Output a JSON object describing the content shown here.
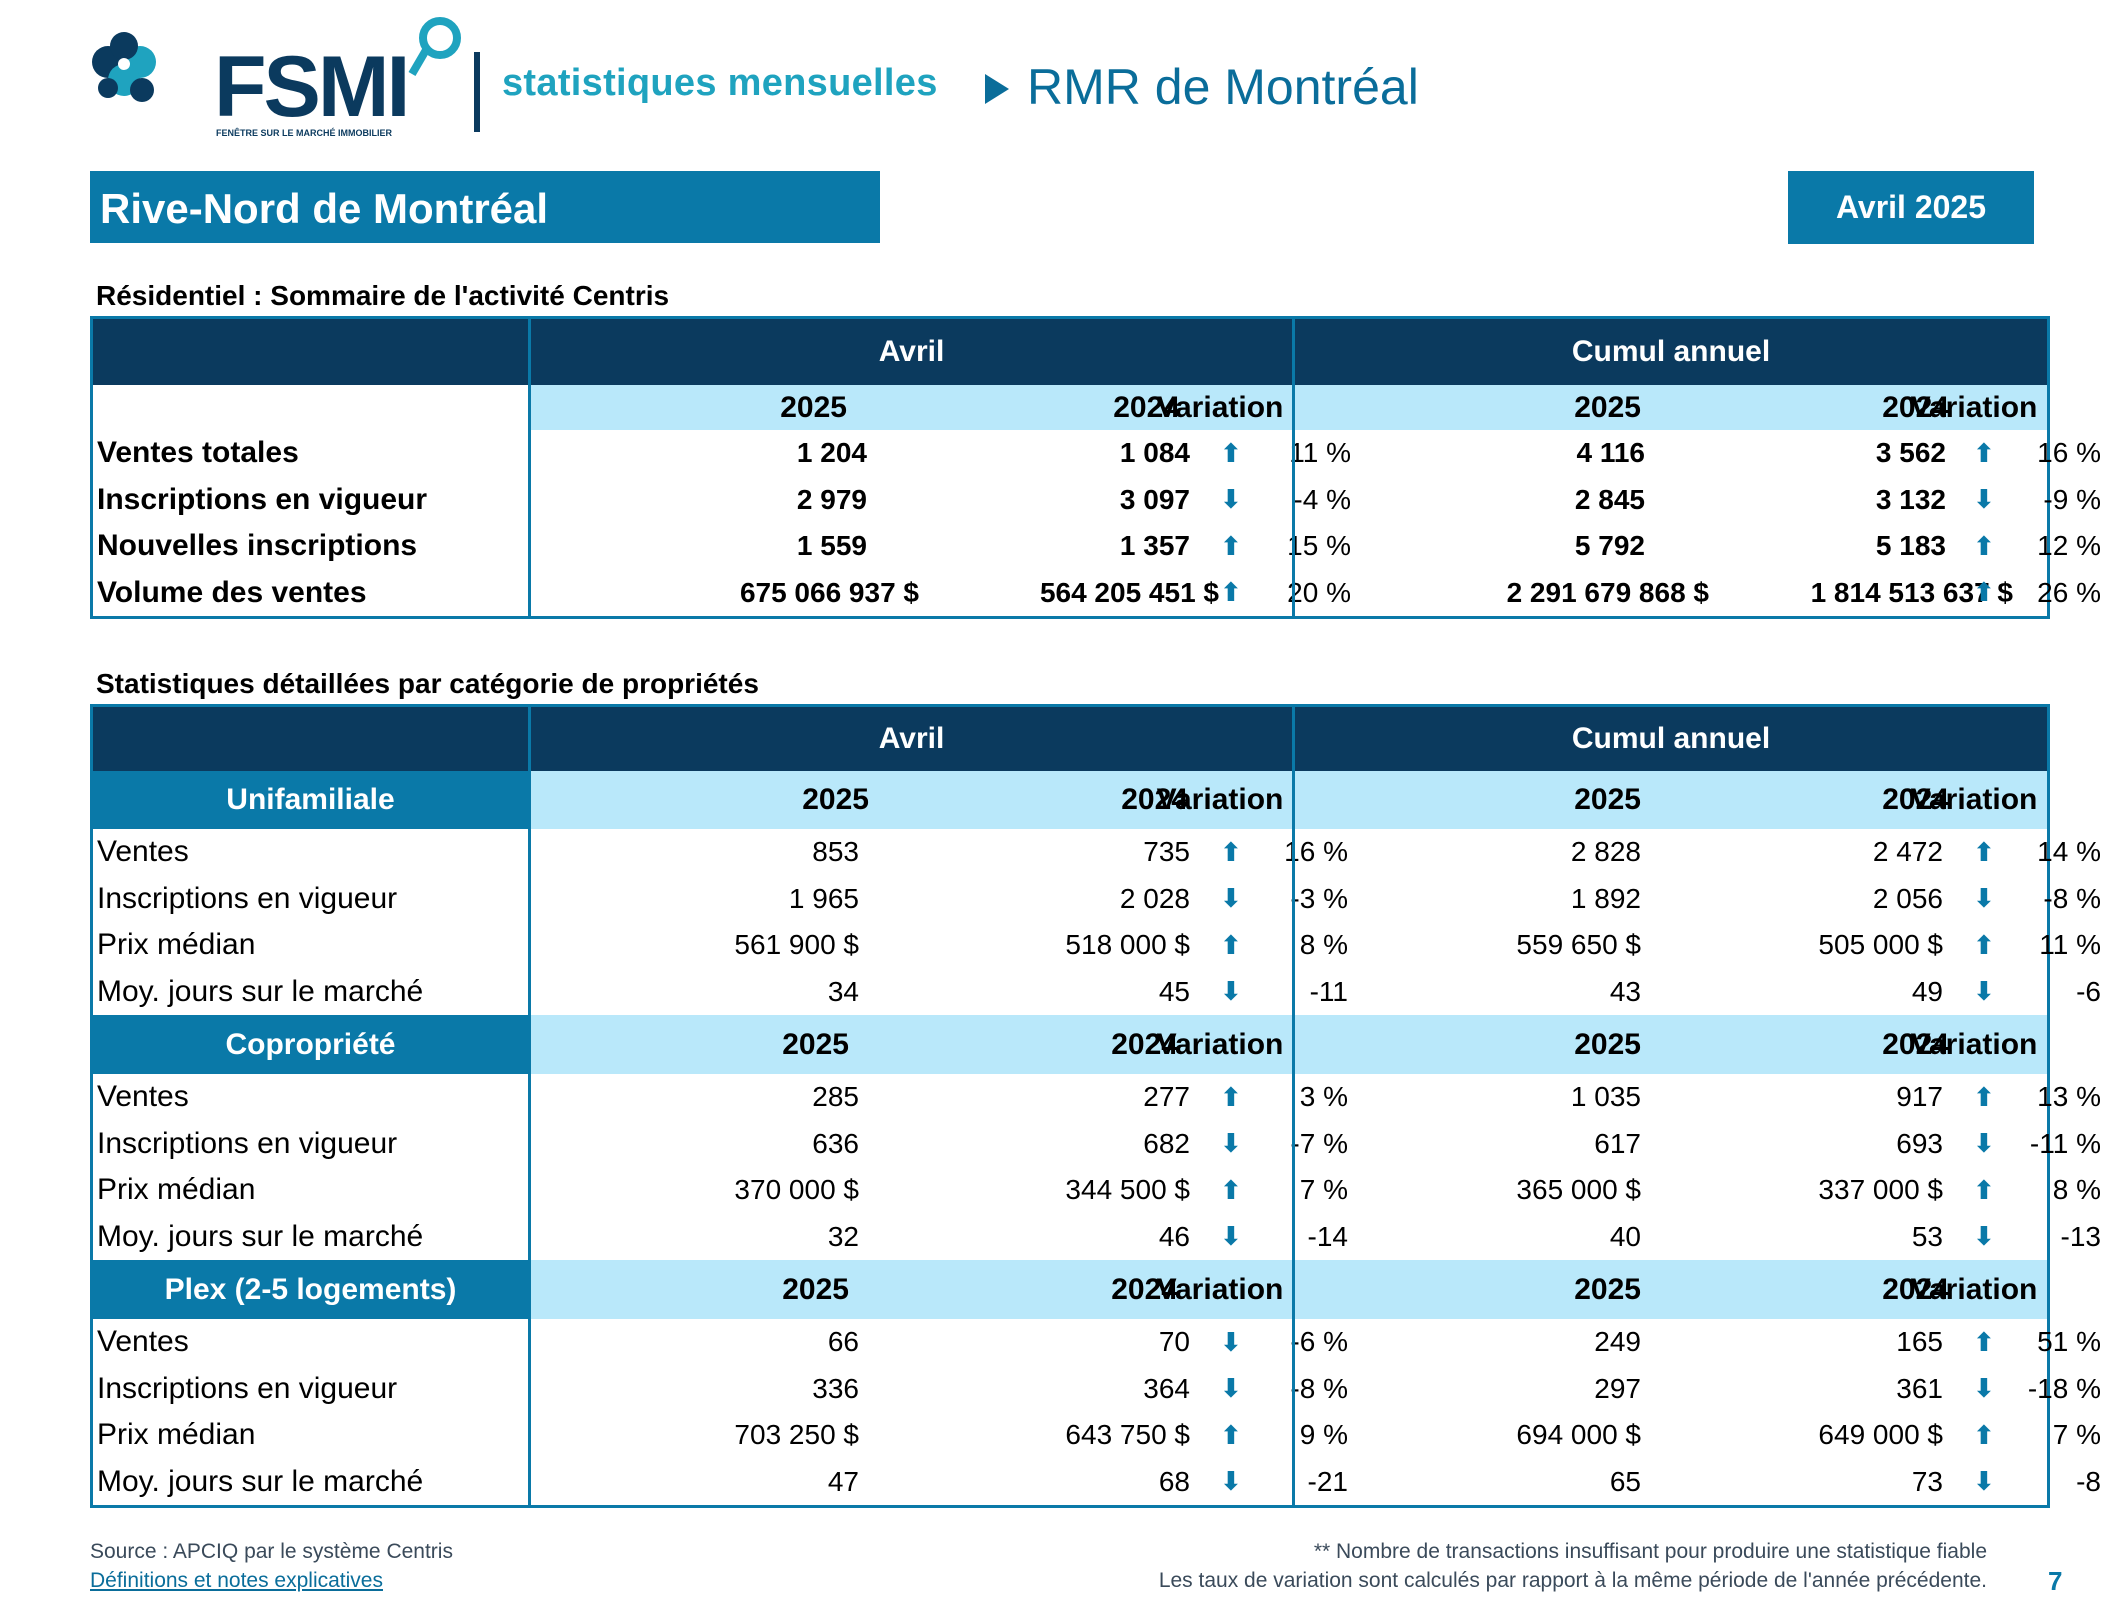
{
  "header": {
    "logo_text": "FSMI",
    "logo_subtext": "FENÊTRE SUR LE MARCHÉ IMMOBILIER",
    "tagline": "statistiques mensuelles",
    "rmr": "RMR de Montréal",
    "region": "Rive-Nord de Montréal",
    "date": "Avril 2025"
  },
  "summary": {
    "title": "Résidentiel : Sommaire de l'activité Centris",
    "group_month": "Avril",
    "group_ytd": "Cumul annuel",
    "col_2025": "2025",
    "col_2024": "2024",
    "col_var": "Variation",
    "rows": [
      {
        "label": "Ventes totales",
        "m25": "1 204",
        "m24": "1 084",
        "m_dir": "up",
        "m_var": "11 %",
        "y25": "4 116",
        "y24": "3 562",
        "y_dir": "up",
        "y_var": "16 %"
      },
      {
        "label": "Inscriptions en vigueur",
        "m25": "2 979",
        "m24": "3 097",
        "m_dir": "down",
        "m_var": "-4 %",
        "y25": "2 845",
        "y24": "3 132",
        "y_dir": "down",
        "y_var": "-9 %"
      },
      {
        "label": "Nouvelles inscriptions",
        "m25": "1 559",
        "m24": "1 357",
        "m_dir": "up",
        "m_var": "15 %",
        "y25": "5 792",
        "y24": "5 183",
        "y_dir": "up",
        "y_var": "12 %"
      },
      {
        "label": "Volume des ventes",
        "m25": "675 066 937  $",
        "m24": "564 205 451  $",
        "m_dir": "up",
        "m_var": "20 %",
        "y25": "2 291 679 868  $",
        "y24": "1 814 513 637  $",
        "y_dir": "up",
        "y_var": "26 %"
      }
    ]
  },
  "detail": {
    "title": "Statistiques détaillées par catégorie de propriétés",
    "group_month": "Avril",
    "group_ytd": "Cumul annuel",
    "categories": [
      {
        "name": "Unifamiliale",
        "col_2025": "2025",
        "col_2024": "2024",
        "col_var": "Variation",
        "rows": [
          {
            "label": "Ventes",
            "m25": "853",
            "m24": "735",
            "m_dir": "up",
            "m_var": "16 %",
            "y25": "2 828",
            "y24": "2 472",
            "y_dir": "up",
            "y_var": "14 %"
          },
          {
            "label": "Inscriptions en vigueur",
            "m25": "1 965",
            "m24": "2 028",
            "m_dir": "down",
            "m_var": "-3 %",
            "y25": "1 892",
            "y24": "2 056",
            "y_dir": "down",
            "y_var": "-8 %"
          },
          {
            "label": "Prix médian",
            "m25": "561 900 $",
            "m24": "518 000 $",
            "m_dir": "up",
            "m_var": "8 %",
            "y25": "559 650 $",
            "y24": "505 000 $",
            "y_dir": "up",
            "y_var": "11 %"
          },
          {
            "label": "Moy. jours sur le marché",
            "m25": "34",
            "m24": "45",
            "m_dir": "down",
            "m_var": "-11",
            "y25": "43",
            "y24": "49",
            "y_dir": "down",
            "y_var": "-6"
          }
        ]
      },
      {
        "name": "Copropriété",
        "col_2025": "2025",
        "col_2024": "2024",
        "col_var": "Variation",
        "rows": [
          {
            "label": "Ventes",
            "m25": "285",
            "m24": "277",
            "m_dir": "up",
            "m_var": "3 %",
            "y25": "1 035",
            "y24": "917",
            "y_dir": "up",
            "y_var": "13 %"
          },
          {
            "label": "Inscriptions en vigueur",
            "m25": "636",
            "m24": "682",
            "m_dir": "down",
            "m_var": "-7 %",
            "y25": "617",
            "y24": "693",
            "y_dir": "down",
            "y_var": "-11 %"
          },
          {
            "label": "Prix médian",
            "m25": "370 000 $",
            "m24": "344 500 $",
            "m_dir": "up",
            "m_var": "7 %",
            "y25": "365 000 $",
            "y24": "337 000 $",
            "y_dir": "up",
            "y_var": "8 %"
          },
          {
            "label": "Moy. jours sur le marché",
            "m25": "32",
            "m24": "46",
            "m_dir": "down",
            "m_var": "-14",
            "y25": "40",
            "y24": "53",
            "y_dir": "down",
            "y_var": "-13"
          }
        ]
      },
      {
        "name": "Plex (2-5 logements)",
        "col_2025": "2025",
        "col_2024": "2024",
        "col_var": "Variation",
        "rows": [
          {
            "label": "Ventes",
            "m25": "66",
            "m24": "70",
            "m_dir": "down",
            "m_var": "-6 %",
            "y25": "249",
            "y24": "165",
            "y_dir": "up",
            "y_var": "51 %"
          },
          {
            "label": "Inscriptions en vigueur",
            "m25": "336",
            "m24": "364",
            "m_dir": "down",
            "m_var": "-8 %",
            "y25": "297",
            "y24": "361",
            "y_dir": "down",
            "y_var": "-18 %"
          },
          {
            "label": "Prix médian",
            "m25": "703 250 $",
            "m24": "643 750 $",
            "m_dir": "up",
            "m_var": "9 %",
            "y25": "694 000 $",
            "y24": "649 000 $",
            "y_dir": "up",
            "y_var": "7 %"
          },
          {
            "label": "Moy. jours sur le marché",
            "m25": "47",
            "m24": "68",
            "m_dir": "down",
            "m_var": "-21",
            "y25": "65",
            "y24": "73",
            "y_dir": "down",
            "y_var": "-8"
          }
        ]
      }
    ]
  },
  "footer": {
    "source": "Source : APCIQ par le système Centris",
    "definitions_link": "Définitions et notes explicatives",
    "note1": "** Nombre de transactions insuffisant pour produire une statistique fiable",
    "note2": "Les taux de variation sont calculés par rapport à la même période de l'année précédente.",
    "page": "7"
  },
  "colors": {
    "navy": "#0b3a5e",
    "teal": "#0a79a8",
    "light_blue": "#b9e8fa",
    "accent": "#1fa3bf"
  },
  "icons": {
    "up": "arrow-up-icon",
    "down": "arrow-down-icon"
  }
}
